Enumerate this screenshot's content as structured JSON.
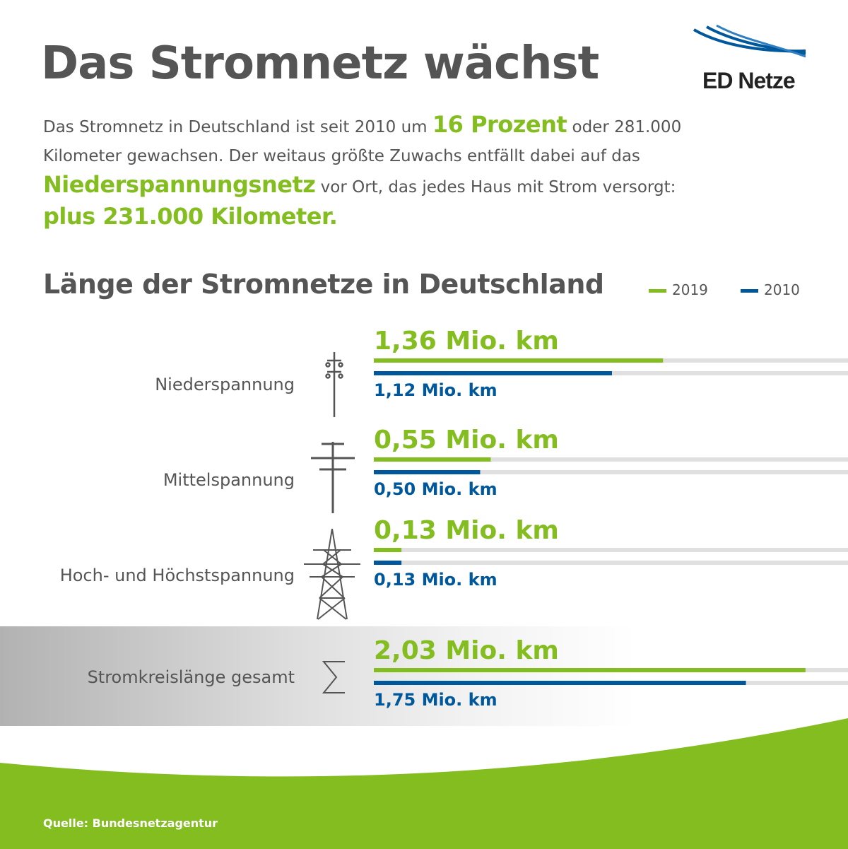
{
  "header": {
    "title": "Das Stromnetz wächst",
    "logo_text": "ED Netze"
  },
  "intro": {
    "part1": "Das Stromnetz in Deutschland ist seit 2010 um ",
    "highlight1": "16 Prozent",
    "part2": " oder 281.000 Kilometer gewachsen. Der weitaus größte Zuwachs entfällt dabei auf das ",
    "highlight2": "Niederspannungsnetz",
    "part3": " vor Ort, das jedes Haus mit Strom versorgt: ",
    "highlight3": "plus 231.000 Kilometer."
  },
  "colors": {
    "green": "#84bd1f",
    "blue": "#00589c",
    "track": "#e0e0e0",
    "text": "#555555"
  },
  "icons": [
    "low-voltage-pole-icon",
    "medium-voltage-pole-icon",
    "high-voltage-pylon-icon",
    "sigma-sum-icon"
  ],
  "chart_data": {
    "type": "bar",
    "orientation": "horizontal",
    "title": "Länge der Stromnetze in Deutschland",
    "legend_position": "top-right",
    "unit": "Mio. km",
    "categories": [
      "Niederspannung",
      "Mittelspannung",
      "Hoch- und Höchstspannung",
      "Stromkreislänge gesamt"
    ],
    "series": [
      {
        "name": "2019",
        "color": "#84bd1f",
        "values": [
          1.36,
          0.55,
          0.13,
          2.03
        ],
        "labels": [
          "1,36 Mio. km",
          "0,55 Mio. km",
          "0,13 Mio. km",
          "2,03 Mio. km"
        ]
      },
      {
        "name": "2010",
        "color": "#00589c",
        "values": [
          1.12,
          0.5,
          0.13,
          1.75
        ],
        "labels": [
          "1,12 Mio. km",
          "0,50 Mio. km",
          "0,13 Mio. km",
          "1,75 Mio. km"
        ]
      }
    ],
    "xlim": [
      0,
      2.23
    ]
  },
  "footer": {
    "source": "Quelle: Bundesnetzagentur"
  }
}
